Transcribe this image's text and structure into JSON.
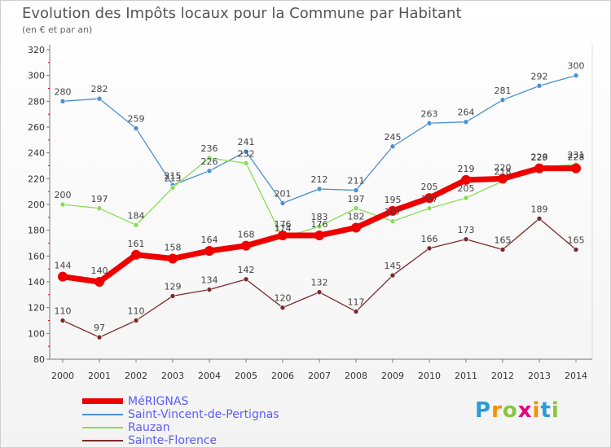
{
  "title": "Evolution des Impôts locaux pour la Commune par Habitant",
  "subtitle": "(en € et par an)",
  "logo_text": "Proxiti",
  "chart_data": {
    "type": "line",
    "x": [
      "2000",
      "2001",
      "2002",
      "2003",
      "2004",
      "2005",
      "2006",
      "2007",
      "2008",
      "2009",
      "2010",
      "2011",
      "2012",
      "2013",
      "2014"
    ],
    "ylim": [
      80,
      320
    ],
    "yticks": [
      80,
      100,
      120,
      140,
      160,
      180,
      200,
      220,
      240,
      260,
      280,
      300,
      320
    ],
    "grid": false,
    "legend_position": "bottom-left",
    "series": [
      {
        "name": "MéRIGNAS",
        "color": "#ee0000",
        "values": [
          144,
          140,
          161,
          158,
          164,
          168,
          176,
          176,
          182,
          195,
          205,
          219,
          220,
          228,
          228
        ],
        "labels": [
          "144",
          "140",
          "161",
          "158",
          "164",
          "168",
          "176",
          "176",
          "182",
          "195",
          "205",
          "219",
          "220",
          "228",
          "228"
        ]
      },
      {
        "name": "Saint-Vincent-de-Pertignas",
        "color": "#4d8fcf",
        "values": [
          280,
          282,
          259,
          215,
          226,
          241,
          201,
          212,
          211,
          245,
          263,
          264,
          281,
          292,
          300
        ],
        "labels": [
          "280",
          "282",
          "259",
          "215",
          "226",
          "241",
          "201",
          "212",
          "211",
          "245",
          "263",
          "264",
          "281",
          "292",
          "300"
        ]
      },
      {
        "name": "Rauzan",
        "color": "#88dd55",
        "values": [
          200,
          197,
          184,
          213,
          236,
          232,
          174,
          183,
          197,
          187,
          197,
          205,
          218,
          229,
          231
        ],
        "labels": [
          "200",
          "197",
          "184",
          "213",
          "236",
          "232",
          "174",
          "183",
          "197",
          "187",
          "197",
          "205",
          "218",
          "229",
          "231"
        ]
      },
      {
        "name": "Sainte-Florence",
        "color": "#7a2a2a",
        "values": [
          110,
          97,
          110,
          129,
          134,
          142,
          120,
          132,
          117,
          145,
          166,
          173,
          165,
          189,
          165
        ],
        "labels": [
          "110",
          "97",
          "110",
          "129",
          "134",
          "142",
          "120",
          "132",
          "117",
          "145",
          "166",
          "173",
          "165",
          "189",
          "165"
        ]
      }
    ]
  }
}
